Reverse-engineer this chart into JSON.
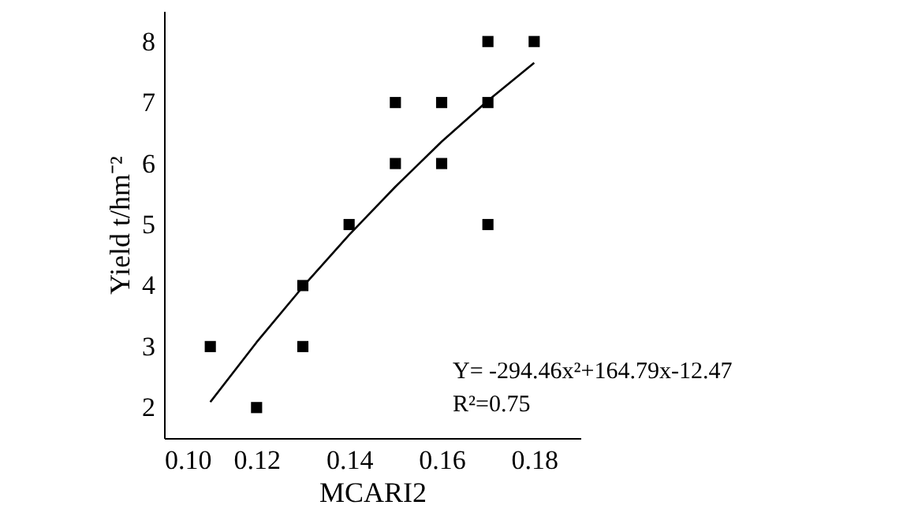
{
  "chart_data": {
    "type": "scatter",
    "xlabel": "MCARI2",
    "ylabel": "Yield t/hm⁻²",
    "x": [
      0.11,
      0.12,
      0.13,
      0.13,
      0.14,
      0.15,
      0.15,
      0.16,
      0.16,
      0.17,
      0.17,
      0.17,
      0.18
    ],
    "series": [
      {
        "color": "#000000",
        "marker": "square",
        "values": [
          3,
          2,
          4,
          3,
          5,
          7,
          6,
          7,
          6,
          8,
          7,
          5,
          8
        ]
      },
      {
        "type": "line",
        "color": "#000000",
        "marker": "none",
        "line_style": "solid",
        "x": [
          0.11,
          0.12,
          0.13,
          0.14,
          0.15,
          0.16,
          0.17,
          0.18
        ],
        "values": [
          2.09,
          3.07,
          3.98,
          4.83,
          5.62,
          6.36,
          7.03,
          7.65
        ]
      }
    ],
    "xlim": [
      0.1,
      0.19
    ],
    "xticks": [
      {
        "value": 0.1,
        "label": "0.10"
      },
      0.12,
      0.14,
      0.16,
      0.18
    ],
    "ylim": [
      1.5,
      8.5
    ],
    "yticks": [
      2,
      3,
      4,
      5,
      6,
      7,
      8
    ],
    "grid": false,
    "annotations": [
      "Y= -294.46x²+164.79x-12.47",
      "R²=0.75"
    ]
  }
}
